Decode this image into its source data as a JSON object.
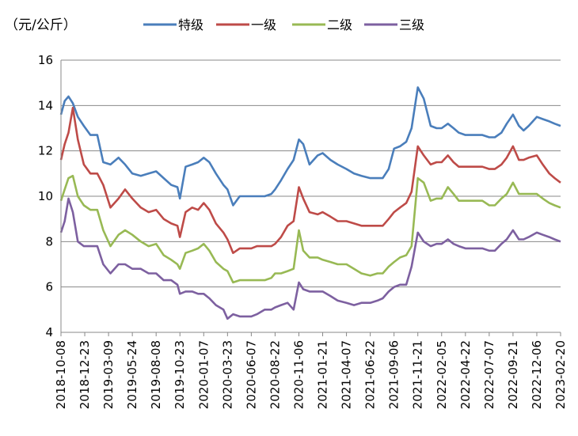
{
  "chart_data": {
    "type": "line",
    "ylabel": "（元/公斤）",
    "ylim": [
      4,
      16
    ],
    "yticks": [
      "4",
      "6",
      "8",
      "10",
      "12",
      "14",
      "16"
    ],
    "grid": true,
    "legend_position": "top",
    "x_start": "2018-10-08",
    "x_end": "2023-02-20",
    "xtick_labels": [
      "2018-10-08",
      "2018-12-23",
      "2019-03-09",
      "2019-05-24",
      "2019-08-08",
      "2019-10-23",
      "2020-01-07",
      "2020-03-23",
      "2020-06-07",
      "2020-08-22",
      "2020-11-06",
      "2021-01-21",
      "2021-04-07",
      "2021-06-22",
      "2021-09-06",
      "2021-11-21",
      "2022-02-05",
      "2022-04-22",
      "2022-07-07",
      "2022-09-21",
      "2022-12-06",
      "2023-02-20"
    ],
    "series": [
      {
        "name": "特级",
        "color": "#4a7ebb",
        "x": [
          "2018-10-08",
          "2018-10-20",
          "2018-11-01",
          "2018-11-15",
          "2018-12-01",
          "2018-12-20",
          "2019-01-10",
          "2019-02-01",
          "2019-02-20",
          "2019-03-15",
          "2019-04-10",
          "2019-05-01",
          "2019-05-24",
          "2019-06-20",
          "2019-07-15",
          "2019-08-08",
          "2019-09-01",
          "2019-09-25",
          "2019-10-15",
          "2019-10-23",
          "2019-11-10",
          "2019-12-01",
          "2019-12-20",
          "2020-01-07",
          "2020-01-25",
          "2020-02-15",
          "2020-03-10",
          "2020-03-23",
          "2020-04-10",
          "2020-05-01",
          "2020-05-20",
          "2020-06-07",
          "2020-06-25",
          "2020-07-20",
          "2020-08-10",
          "2020-08-22",
          "2020-09-10",
          "2020-10-01",
          "2020-10-20",
          "2020-11-06",
          "2020-11-20",
          "2020-12-10",
          "2021-01-05",
          "2021-01-21",
          "2021-02-15",
          "2021-03-10",
          "2021-04-07",
          "2021-05-01",
          "2021-05-25",
          "2021-06-22",
          "2021-07-15",
          "2021-08-01",
          "2021-08-20",
          "2021-09-06",
          "2021-09-25",
          "2021-10-15",
          "2021-11-01",
          "2021-11-21",
          "2021-12-10",
          "2022-01-01",
          "2022-01-20",
          "2022-02-05",
          "2022-02-25",
          "2022-03-15",
          "2022-04-01",
          "2022-04-22",
          "2022-05-20",
          "2022-06-15",
          "2022-07-07",
          "2022-07-25",
          "2022-08-15",
          "2022-09-01",
          "2022-09-21",
          "2022-10-10",
          "2022-10-25",
          "2022-11-10",
          "2022-12-06",
          "2022-12-25",
          "2023-01-15",
          "2023-02-01",
          "2023-02-20"
        ],
        "values": [
          13.6,
          14.2,
          14.4,
          14.1,
          13.5,
          13.1,
          12.7,
          12.7,
          11.5,
          11.4,
          11.7,
          11.4,
          11.0,
          10.9,
          11.0,
          11.1,
          10.8,
          10.5,
          10.4,
          9.9,
          11.3,
          11.4,
          11.5,
          11.7,
          11.5,
          11.0,
          10.5,
          10.3,
          9.6,
          10.0,
          10.0,
          10.0,
          10.0,
          10.0,
          10.1,
          10.3,
          10.7,
          11.2,
          11.6,
          12.5,
          12.3,
          11.4,
          11.8,
          11.9,
          11.6,
          11.4,
          11.2,
          11.0,
          10.9,
          10.8,
          10.8,
          10.8,
          11.2,
          12.1,
          12.2,
          12.4,
          13.0,
          14.8,
          14.3,
          13.1,
          13.0,
          13.0,
          13.2,
          13.0,
          12.8,
          12.7,
          12.7,
          12.7,
          12.6,
          12.6,
          12.8,
          13.2,
          13.6,
          13.1,
          12.9,
          13.1,
          13.5,
          13.4,
          13.3,
          13.2,
          13.1
        ]
      },
      {
        "name": "一级",
        "color": "#be4b48",
        "x": [
          "2018-10-08",
          "2018-10-20",
          "2018-11-01",
          "2018-11-15",
          "2018-12-01",
          "2018-12-20",
          "2019-01-10",
          "2019-02-01",
          "2019-02-20",
          "2019-03-15",
          "2019-04-10",
          "2019-05-01",
          "2019-05-24",
          "2019-06-20",
          "2019-07-15",
          "2019-08-08",
          "2019-09-01",
          "2019-09-25",
          "2019-10-15",
          "2019-10-23",
          "2019-11-10",
          "2019-12-01",
          "2019-12-20",
          "2020-01-07",
          "2020-01-25",
          "2020-02-15",
          "2020-03-10",
          "2020-03-23",
          "2020-04-10",
          "2020-05-01",
          "2020-05-20",
          "2020-06-07",
          "2020-06-25",
          "2020-07-20",
          "2020-08-10",
          "2020-08-22",
          "2020-09-10",
          "2020-10-01",
          "2020-10-20",
          "2020-11-06",
          "2020-11-20",
          "2020-12-10",
          "2021-01-05",
          "2021-01-21",
          "2021-02-15",
          "2021-03-10",
          "2021-04-07",
          "2021-05-01",
          "2021-05-25",
          "2021-06-22",
          "2021-07-15",
          "2021-08-01",
          "2021-08-20",
          "2021-09-06",
          "2021-09-25",
          "2021-10-15",
          "2021-11-01",
          "2021-11-21",
          "2021-12-10",
          "2022-01-01",
          "2022-01-20",
          "2022-02-05",
          "2022-02-25",
          "2022-03-15",
          "2022-04-01",
          "2022-04-22",
          "2022-05-20",
          "2022-06-15",
          "2022-07-07",
          "2022-07-25",
          "2022-08-15",
          "2022-09-01",
          "2022-09-21",
          "2022-10-10",
          "2022-10-25",
          "2022-11-10",
          "2022-12-06",
          "2022-12-25",
          "2023-01-15",
          "2023-02-01",
          "2023-02-20"
        ],
        "values": [
          11.6,
          12.3,
          12.8,
          13.9,
          12.5,
          11.4,
          11.0,
          11.0,
          10.5,
          9.5,
          9.9,
          10.3,
          9.9,
          9.5,
          9.3,
          9.4,
          9.0,
          8.8,
          8.7,
          8.2,
          9.3,
          9.5,
          9.4,
          9.7,
          9.4,
          8.8,
          8.4,
          8.1,
          7.5,
          7.7,
          7.7,
          7.7,
          7.8,
          7.8,
          7.8,
          7.9,
          8.2,
          8.7,
          8.9,
          10.4,
          9.9,
          9.3,
          9.2,
          9.3,
          9.1,
          8.9,
          8.9,
          8.8,
          8.7,
          8.7,
          8.7,
          8.7,
          9.0,
          9.3,
          9.5,
          9.7,
          10.2,
          12.2,
          11.8,
          11.4,
          11.5,
          11.5,
          11.8,
          11.5,
          11.3,
          11.3,
          11.3,
          11.3,
          11.2,
          11.2,
          11.4,
          11.7,
          12.2,
          11.6,
          11.6,
          11.7,
          11.8,
          11.4,
          11.0,
          10.8,
          10.6
        ]
      },
      {
        "name": "二级",
        "color": "#98b954",
        "x": [
          "2018-10-08",
          "2018-10-20",
          "2018-11-01",
          "2018-11-15",
          "2018-12-01",
          "2018-12-20",
          "2019-01-10",
          "2019-02-01",
          "2019-02-20",
          "2019-03-15",
          "2019-04-10",
          "2019-05-01",
          "2019-05-24",
          "2019-06-20",
          "2019-07-15",
          "2019-08-08",
          "2019-09-01",
          "2019-09-25",
          "2019-10-15",
          "2019-10-23",
          "2019-11-10",
          "2019-12-01",
          "2019-12-20",
          "2020-01-07",
          "2020-01-25",
          "2020-02-15",
          "2020-03-10",
          "2020-03-23",
          "2020-04-10",
          "2020-05-01",
          "2020-05-20",
          "2020-06-07",
          "2020-06-25",
          "2020-07-20",
          "2020-08-10",
          "2020-08-22",
          "2020-09-10",
          "2020-10-01",
          "2020-10-20",
          "2020-11-06",
          "2020-11-20",
          "2020-12-10",
          "2021-01-05",
          "2021-01-21",
          "2021-02-15",
          "2021-03-10",
          "2021-04-07",
          "2021-05-01",
          "2021-05-25",
          "2021-06-22",
          "2021-07-15",
          "2021-08-01",
          "2021-08-20",
          "2021-09-06",
          "2021-09-25",
          "2021-10-15",
          "2021-11-01",
          "2021-11-21",
          "2021-12-10",
          "2022-01-01",
          "2022-01-20",
          "2022-02-05",
          "2022-02-25",
          "2022-03-15",
          "2022-04-01",
          "2022-04-22",
          "2022-05-20",
          "2022-06-15",
          "2022-07-07",
          "2022-07-25",
          "2022-08-15",
          "2022-09-01",
          "2022-09-21",
          "2022-10-10",
          "2022-10-25",
          "2022-11-10",
          "2022-12-06",
          "2022-12-25",
          "2023-01-15",
          "2023-02-01",
          "2023-02-20"
        ],
        "values": [
          9.8,
          10.3,
          10.8,
          10.9,
          10.0,
          9.6,
          9.4,
          9.4,
          8.5,
          7.8,
          8.3,
          8.5,
          8.3,
          8.0,
          7.8,
          7.9,
          7.4,
          7.2,
          7.0,
          6.8,
          7.5,
          7.6,
          7.7,
          7.9,
          7.6,
          7.1,
          6.8,
          6.7,
          6.2,
          6.3,
          6.3,
          6.3,
          6.3,
          6.3,
          6.4,
          6.6,
          6.6,
          6.7,
          6.8,
          8.5,
          7.6,
          7.3,
          7.3,
          7.2,
          7.1,
          7.0,
          7.0,
          6.8,
          6.6,
          6.5,
          6.6,
          6.6,
          6.9,
          7.1,
          7.3,
          7.4,
          7.8,
          10.8,
          10.6,
          9.8,
          9.9,
          9.9,
          10.4,
          10.1,
          9.8,
          9.8,
          9.8,
          9.8,
          9.6,
          9.6,
          9.9,
          10.1,
          10.6,
          10.1,
          10.1,
          10.1,
          10.1,
          9.9,
          9.7,
          9.6,
          9.5
        ]
      },
      {
        "name": "三级",
        "color": "#7d60a0",
        "x": [
          "2018-10-08",
          "2018-10-20",
          "2018-11-01",
          "2018-11-15",
          "2018-12-01",
          "2018-12-20",
          "2019-01-10",
          "2019-02-01",
          "2019-02-20",
          "2019-03-15",
          "2019-04-10",
          "2019-05-01",
          "2019-05-24",
          "2019-06-20",
          "2019-07-15",
          "2019-08-08",
          "2019-09-01",
          "2019-09-25",
          "2019-10-15",
          "2019-10-23",
          "2019-11-10",
          "2019-12-01",
          "2019-12-20",
          "2020-01-07",
          "2020-01-25",
          "2020-02-15",
          "2020-03-10",
          "2020-03-23",
          "2020-04-10",
          "2020-05-01",
          "2020-05-20",
          "2020-06-07",
          "2020-06-25",
          "2020-07-20",
          "2020-08-10",
          "2020-08-22",
          "2020-09-10",
          "2020-10-01",
          "2020-10-20",
          "2020-11-06",
          "2020-11-20",
          "2020-12-10",
          "2021-01-05",
          "2021-01-21",
          "2021-02-15",
          "2021-03-10",
          "2021-04-07",
          "2021-05-01",
          "2021-05-25",
          "2021-06-22",
          "2021-07-15",
          "2021-08-01",
          "2021-08-20",
          "2021-09-06",
          "2021-09-25",
          "2021-10-15",
          "2021-11-01",
          "2021-11-21",
          "2021-12-10",
          "2022-01-01",
          "2022-01-20",
          "2022-02-05",
          "2022-02-25",
          "2022-03-15",
          "2022-04-01",
          "2022-04-22",
          "2022-05-20",
          "2022-06-15",
          "2022-07-07",
          "2022-07-25",
          "2022-08-15",
          "2022-09-01",
          "2022-09-21",
          "2022-10-10",
          "2022-10-25",
          "2022-11-10",
          "2022-12-06",
          "2022-12-25",
          "2023-01-15",
          "2023-02-01",
          "2023-02-20"
        ],
        "values": [
          8.4,
          8.9,
          9.9,
          9.3,
          8.0,
          7.8,
          7.8,
          7.8,
          7.0,
          6.6,
          7.0,
          7.0,
          6.8,
          6.8,
          6.6,
          6.6,
          6.3,
          6.3,
          6.1,
          5.7,
          5.8,
          5.8,
          5.7,
          5.7,
          5.5,
          5.2,
          5.0,
          4.6,
          4.8,
          4.7,
          4.7,
          4.7,
          4.8,
          5.0,
          5.0,
          5.1,
          5.2,
          5.3,
          5.0,
          6.2,
          5.9,
          5.8,
          5.8,
          5.8,
          5.6,
          5.4,
          5.3,
          5.2,
          5.3,
          5.3,
          5.4,
          5.5,
          5.8,
          6.0,
          6.1,
          6.1,
          6.9,
          8.4,
          8.0,
          7.8,
          7.9,
          7.9,
          8.1,
          7.9,
          7.8,
          7.7,
          7.7,
          7.7,
          7.6,
          7.6,
          7.9,
          8.1,
          8.5,
          8.1,
          8.1,
          8.2,
          8.4,
          8.3,
          8.2,
          8.1,
          8.0
        ]
      }
    ]
  }
}
